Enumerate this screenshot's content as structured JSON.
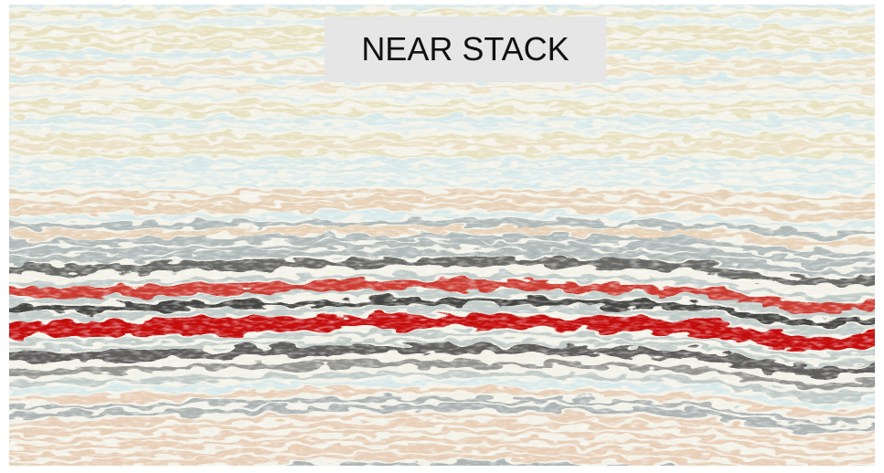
{
  "label": "NEAR STACK"
}
